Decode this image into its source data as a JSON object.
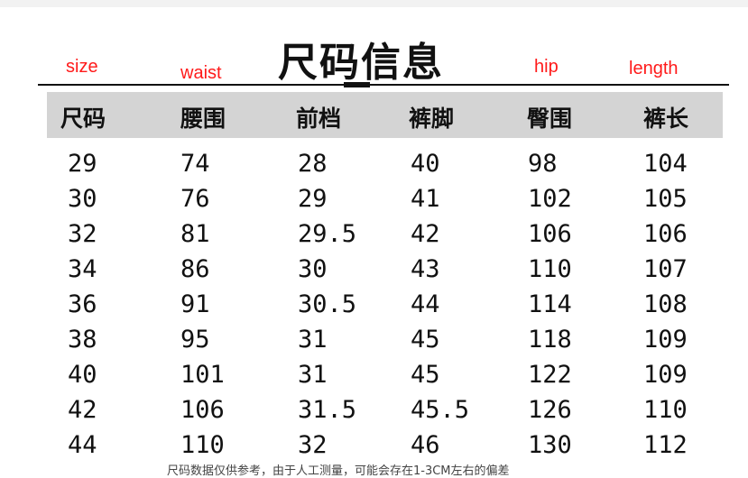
{
  "title": "尺码信息",
  "annotations": {
    "size": "size",
    "waist": "waist",
    "hip": "hip",
    "length": "length"
  },
  "colors": {
    "annotation": "#ff1a1a",
    "header_band": "#d4d4d4"
  },
  "table": {
    "headers": [
      "尺码",
      "腰围",
      "前档",
      "裤脚",
      "臀围",
      "裤长"
    ],
    "rows": [
      [
        "29",
        "74",
        "28",
        "40",
        "98",
        "104"
      ],
      [
        "30",
        "76",
        "29",
        "41",
        "102",
        "105"
      ],
      [
        "32",
        "81",
        "29.5",
        "42",
        "106",
        "106"
      ],
      [
        "34",
        "86",
        "30",
        "43",
        "110",
        "107"
      ],
      [
        "36",
        "91",
        "30.5",
        "44",
        "114",
        "108"
      ],
      [
        "38",
        "95",
        "31",
        "45",
        "118",
        "109"
      ],
      [
        "40",
        "101",
        "31",
        "45",
        "122",
        "109"
      ],
      [
        "42",
        "106",
        "31.5",
        "45.5",
        "126",
        "110"
      ],
      [
        "44",
        "110",
        "32",
        "46",
        "130",
        "112"
      ]
    ]
  },
  "footnote": "尺码数据仅供参考，由于人工测量，可能会存在1-3CM左右的偏差"
}
